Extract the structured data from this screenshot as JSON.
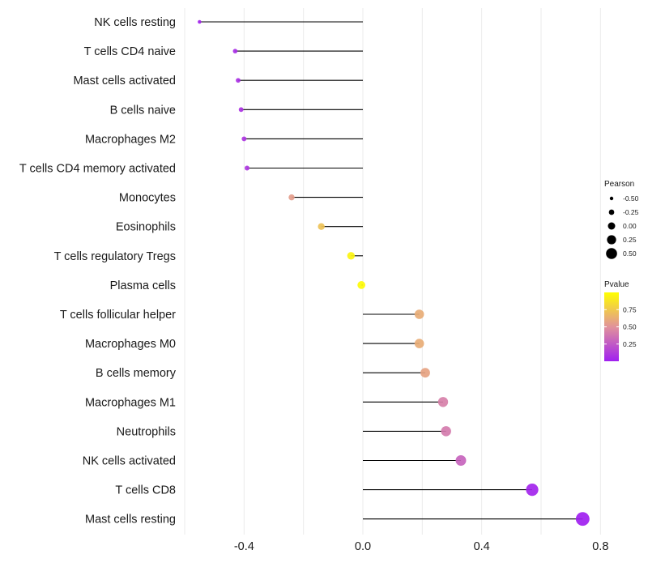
{
  "chart_data": {
    "type": "lollipop",
    "title": "",
    "xlabel": "",
    "ylabel": "",
    "xlim": [
      -0.6,
      0.84
    ],
    "xticks": [
      -0.4,
      0.0,
      0.4,
      0.8
    ],
    "xtick_labels": [
      "-0.4",
      "0.0",
      "0.4",
      "0.8"
    ],
    "grid": true,
    "baseline": 0.0,
    "categories": [
      "NK cells resting",
      "T cells CD4 naive",
      "Mast cells activated",
      "B cells naive",
      "Macrophages M2",
      "T cells CD4 memory activated",
      "Monocytes",
      "Eosinophils",
      "T cells regulatory  Tregs",
      "Plasma cells",
      "T cells follicular helper",
      "Macrophages M0",
      "B cells memory",
      "Macrophages M1",
      "Neutrophils",
      "NK cells activated",
      "T cells CD8",
      "Mast cells resting"
    ],
    "values": [
      -0.55,
      -0.43,
      -0.42,
      -0.41,
      -0.4,
      -0.39,
      -0.24,
      -0.14,
      -0.04,
      -0.005,
      0.19,
      0.19,
      0.21,
      0.27,
      0.28,
      0.33,
      0.57,
      0.74
    ],
    "pvalues": [
      0.02,
      0.06,
      0.07,
      0.08,
      0.09,
      0.1,
      0.55,
      0.72,
      0.95,
      0.98,
      0.62,
      0.62,
      0.58,
      0.42,
      0.4,
      0.3,
      0.02,
      0.0
    ],
    "legend_size": {
      "title": "Pearson",
      "values": [
        -0.5,
        -0.25,
        0.0,
        0.25,
        0.5
      ],
      "labels": [
        "-0.50",
        "-0.25",
        "0.00",
        "0.25",
        "0.50"
      ]
    },
    "legend_color": {
      "title": "Pvalue",
      "range": [
        0.0,
        1.0
      ],
      "ticks": [
        0.25,
        0.5,
        0.75
      ],
      "labels": [
        "0.25",
        "0.50",
        "0.75"
      ],
      "colors": [
        "#a020f0",
        "#e1929b",
        "#ffff00"
      ]
    },
    "legend_position": "right"
  }
}
